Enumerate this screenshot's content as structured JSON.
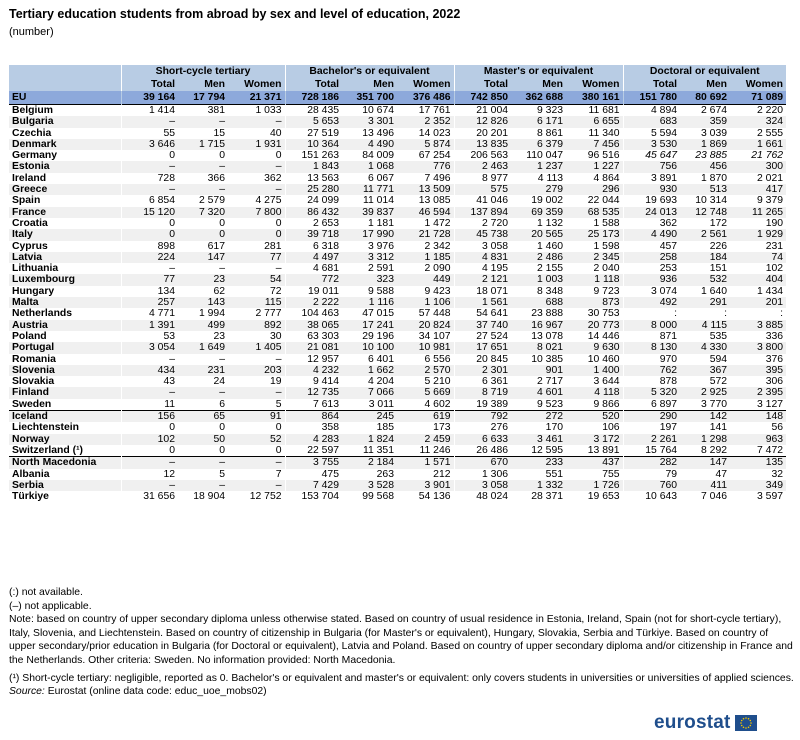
{
  "title": "Tertiary education students from abroad by sex and level of education, 2022",
  "subtitle": "(number)",
  "header": {
    "groups": [
      "Short-cycle tertiary",
      "Bachelor's or equivalent",
      "Master's or equivalent",
      "Doctoral or equivalent"
    ],
    "sub": [
      "Total",
      "Men",
      "Women"
    ]
  },
  "rows": [
    {
      "name": "EU",
      "v": [
        "39 164",
        "17 794",
        "21 371",
        "728 186",
        "351 700",
        "376 486",
        "742 850",
        "362 688",
        "380 161",
        "151 780",
        "80 692",
        "71 089"
      ]
    },
    {
      "name": "Belgium",
      "v": [
        "1 414",
        "381",
        "1 033",
        "28 435",
        "10 674",
        "17 761",
        "21 004",
        "9 323",
        "11 681",
        "4 894",
        "2 674",
        "2 220"
      ]
    },
    {
      "name": "Bulgaria",
      "v": [
        "–",
        "–",
        "–",
        "5 653",
        "3 301",
        "2 352",
        "12 826",
        "6 171",
        "6 655",
        "683",
        "359",
        "324"
      ]
    },
    {
      "name": "Czechia",
      "v": [
        "55",
        "15",
        "40",
        "27 519",
        "13 496",
        "14 023",
        "20 201",
        "8 861",
        "11 340",
        "5 594",
        "3 039",
        "2 555"
      ]
    },
    {
      "name": "Denmark",
      "v": [
        "3 646",
        "1 715",
        "1 931",
        "10 364",
        "4 490",
        "5 874",
        "13 835",
        "6 379",
        "7 456",
        "3 530",
        "1 869",
        "1 661"
      ]
    },
    {
      "name": "Germany",
      "v": [
        "0",
        "0",
        "0",
        "151 263",
        "84 009",
        "67 254",
        "206 563",
        "110 047",
        "96 516",
        "45 647",
        "23 885",
        "21 762"
      ]
    },
    {
      "name": "Estonia",
      "v": [
        "–",
        "–",
        "–",
        "1 843",
        "1 068",
        "776",
        "2 463",
        "1 237",
        "1 227",
        "756",
        "456",
        "300"
      ]
    },
    {
      "name": "Ireland",
      "v": [
        "728",
        "366",
        "362",
        "13 563",
        "6 067",
        "7 496",
        "8 977",
        "4 113",
        "4 864",
        "3 891",
        "1 870",
        "2 021"
      ]
    },
    {
      "name": "Greece",
      "v": [
        "–",
        "–",
        "–",
        "25 280",
        "11 771",
        "13 509",
        "575",
        "279",
        "296",
        "930",
        "513",
        "417"
      ]
    },
    {
      "name": "Spain",
      "v": [
        "6 854",
        "2 579",
        "4 275",
        "24 099",
        "11 014",
        "13 085",
        "41 046",
        "19 002",
        "22 044",
        "19 693",
        "10 314",
        "9 379"
      ]
    },
    {
      "name": "France",
      "v": [
        "15 120",
        "7 320",
        "7 800",
        "86 432",
        "39 837",
        "46 594",
        "137 894",
        "69 359",
        "68 535",
        "24 013",
        "12 748",
        "11 265"
      ]
    },
    {
      "name": "Croatia",
      "v": [
        "0",
        "0",
        "0",
        "2 653",
        "1 181",
        "1 472",
        "2 720",
        "1 132",
        "1 588",
        "362",
        "172",
        "190"
      ]
    },
    {
      "name": "Italy",
      "v": [
        "0",
        "0",
        "0",
        "39 718",
        "17 990",
        "21 728",
        "45 738",
        "20 565",
        "25 173",
        "4 490",
        "2 561",
        "1 929"
      ]
    },
    {
      "name": "Cyprus",
      "v": [
        "898",
        "617",
        "281",
        "6 318",
        "3 976",
        "2 342",
        "3 058",
        "1 460",
        "1 598",
        "457",
        "226",
        "231"
      ]
    },
    {
      "name": "Latvia",
      "v": [
        "224",
        "147",
        "77",
        "4 497",
        "3 312",
        "1 185",
        "4 831",
        "2 486",
        "2 345",
        "258",
        "184",
        "74"
      ]
    },
    {
      "name": "Lithuania",
      "v": [
        "–",
        "–",
        "–",
        "4 681",
        "2 591",
        "2 090",
        "4 195",
        "2 155",
        "2 040",
        "253",
        "151",
        "102"
      ]
    },
    {
      "name": "Luxembourg",
      "v": [
        "77",
        "23",
        "54",
        "772",
        "323",
        "449",
        "2 121",
        "1 003",
        "1 118",
        "936",
        "532",
        "404"
      ]
    },
    {
      "name": "Hungary",
      "v": [
        "134",
        "62",
        "72",
        "19 011",
        "9 588",
        "9 423",
        "18 071",
        "8 348",
        "9 723",
        "3 074",
        "1 640",
        "1 434"
      ]
    },
    {
      "name": "Malta",
      "v": [
        "257",
        "143",
        "115",
        "2 222",
        "1 116",
        "1 106",
        "1 561",
        "688",
        "873",
        "492",
        "291",
        "201"
      ]
    },
    {
      "name": "Netherlands",
      "v": [
        "4 771",
        "1 994",
        "2 777",
        "104 463",
        "47 015",
        "57 448",
        "54 641",
        "23 888",
        "30 753",
        ":",
        ":",
        ":"
      ]
    },
    {
      "name": "Austria",
      "v": [
        "1 391",
        "499",
        "892",
        "38 065",
        "17 241",
        "20 824",
        "37 740",
        "16 967",
        "20 773",
        "8 000",
        "4 115",
        "3 885"
      ]
    },
    {
      "name": "Poland",
      "v": [
        "53",
        "23",
        "30",
        "63 303",
        "29 196",
        "34 107",
        "27 524",
        "13 078",
        "14 446",
        "871",
        "535",
        "336"
      ]
    },
    {
      "name": "Portugal",
      "v": [
        "3 054",
        "1 649",
        "1 405",
        "21 081",
        "10 100",
        "10 981",
        "17 651",
        "8 021",
        "9 630",
        "8 130",
        "4 330",
        "3 800"
      ]
    },
    {
      "name": "Romania",
      "v": [
        "–",
        "–",
        "–",
        "12 957",
        "6 401",
        "6 556",
        "20 845",
        "10 385",
        "10 460",
        "970",
        "594",
        "376"
      ]
    },
    {
      "name": "Slovenia",
      "v": [
        "434",
        "231",
        "203",
        "4 232",
        "1 662",
        "2 570",
        "2 301",
        "901",
        "1 400",
        "762",
        "367",
        "395"
      ]
    },
    {
      "name": "Slovakia",
      "v": [
        "43",
        "24",
        "19",
        "9 414",
        "4 204",
        "5 210",
        "6 361",
        "2 717",
        "3 644",
        "878",
        "572",
        "306"
      ]
    },
    {
      "name": "Finland",
      "v": [
        "–",
        "–",
        "–",
        "12 735",
        "7 066",
        "5 669",
        "8 719",
        "4 601",
        "4 118",
        "5 320",
        "2 925",
        "2 395"
      ]
    },
    {
      "name": "Sweden",
      "v": [
        "11",
        "6",
        "5",
        "7 613",
        "3 011",
        "4 602",
        "19 389",
        "9 523",
        "9 866",
        "6 897",
        "3 770",
        "3 127"
      ]
    },
    {
      "name": "Iceland",
      "v": [
        "156",
        "65",
        "91",
        "864",
        "245",
        "619",
        "792",
        "272",
        "520",
        "290",
        "142",
        "148"
      ]
    },
    {
      "name": "Liechtenstein",
      "v": [
        "0",
        "0",
        "0",
        "358",
        "185",
        "173",
        "276",
        "170",
        "106",
        "197",
        "141",
        "56"
      ]
    },
    {
      "name": "Norway",
      "v": [
        "102",
        "50",
        "52",
        "4 283",
        "1 824",
        "2 459",
        "6 633",
        "3 461",
        "3 172",
        "2 261",
        "1 298",
        "963"
      ]
    },
    {
      "name": "Switzerland (¹)",
      "v": [
        "0",
        "0",
        "0",
        "22 597",
        "11 351",
        "11 246",
        "26 486",
        "12 595",
        "13 891",
        "15 764",
        "8 292",
        "7 472"
      ]
    },
    {
      "name": "North Macedonia",
      "v": [
        "–",
        "–",
        "–",
        "3 755",
        "2 184",
        "1 571",
        "670",
        "233",
        "437",
        "282",
        "147",
        "135"
      ]
    },
    {
      "name": "Albania",
      "v": [
        "12",
        "5",
        "7",
        "475",
        "263",
        "212",
        "1 306",
        "551",
        "755",
        "79",
        "47",
        "32"
      ]
    },
    {
      "name": "Serbia",
      "v": [
        "–",
        "–",
        "–",
        "7 429",
        "3 528",
        "3 901",
        "3 058",
        "1 332",
        "1 726",
        "760",
        "411",
        "349"
      ]
    },
    {
      "name": "Türkiye",
      "v": [
        "31 656",
        "18 904",
        "12 752",
        "153 704",
        "99 568",
        "54 136",
        "48 024",
        "28 371",
        "19 653",
        "10 643",
        "7 046",
        "3 597"
      ]
    }
  ],
  "notes": {
    "na": "(:) not available.",
    "napp": "(–) not applicable.",
    "note": "Note: based on country of upper secondary diploma unless otherwise stated. Based on country of usual residence in Estonia, Ireland, Spain (not for short-cycle tertiary), Italy, Slovenia, and Liechtenstein. Based on country of citizenship in Bulgaria (for Master's or equivalent), Hungary, Slovakia, Serbia and Türkiye. Based on country of upper secondary/prior education in Bulgaria (for Doctoral or equivalent), Latvia and Poland. Based on country of upper secondary diploma and/or citizenship in France and the Netherlands. Other criteria: Sweden. No information provided: North Macedonia.",
    "footnote": "(¹) Short-cycle tertiary: negligible, reported as 0. Bachelor's or equivalent and master's or equivalent: only covers students in universities or universities of applied sciences.",
    "source_label": "Source:",
    "source_text": "Eurostat (online data code: educ_uoe_mobs02)"
  },
  "logo": "eurostat"
}
